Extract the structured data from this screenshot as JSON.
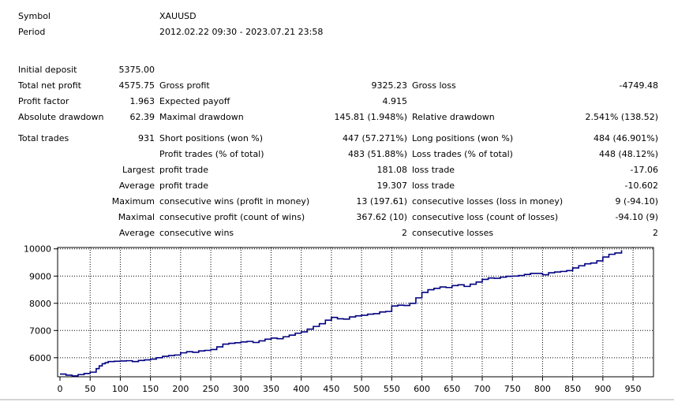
{
  "header": {
    "symbol_label": "Symbol",
    "symbol_value": "XAUUSD",
    "period_label": "Period",
    "period_value": "2012.02.22 09:30 - 2023.07.21 23:58"
  },
  "stats": {
    "initial_deposit": {
      "label": "Initial deposit",
      "value": "5375.00"
    },
    "total_net_profit": {
      "label": "Total net profit",
      "value": "4575.75"
    },
    "gross_profit": {
      "label": "Gross profit",
      "value": "9325.23"
    },
    "gross_loss": {
      "label": "Gross loss",
      "value": "-4749.48"
    },
    "profit_factor": {
      "label": "Profit factor",
      "value": "1.963"
    },
    "expected_payoff": {
      "label": "Expected payoff",
      "value": "4.915"
    },
    "absolute_drawdown": {
      "label": "Absolute drawdown",
      "value": "62.39"
    },
    "maximal_drawdown": {
      "label": "Maximal drawdown",
      "value": "145.81 (1.948%)"
    },
    "relative_drawdown": {
      "label": "Relative drawdown",
      "value": "2.541% (138.52)"
    },
    "total_trades": {
      "label": "Total trades",
      "value": "931"
    },
    "short_positions": {
      "label": "Short positions (won %)",
      "value": "447 (57.271%)"
    },
    "long_positions": {
      "label": "Long positions (won %)",
      "value": "484 (46.901%)"
    },
    "profit_trades": {
      "label": "Profit trades (% of total)",
      "value": "483 (51.88%)"
    },
    "loss_trades": {
      "label": "Loss trades (% of total)",
      "value": "448 (48.12%)"
    },
    "largest": {
      "prefix": "Largest",
      "profit_label": "profit trade",
      "profit_value": "181.08",
      "loss_label": "loss trade",
      "loss_value": "-17.06"
    },
    "average": {
      "prefix": "Average",
      "profit_label": "profit trade",
      "profit_value": "19.307",
      "loss_label": "loss trade",
      "loss_value": "-10.602"
    },
    "maximum": {
      "prefix": "Maximum",
      "wins_label": "consecutive wins (profit in money)",
      "wins_value": "13 (197.61)",
      "losses_label": "consecutive losses (loss in money)",
      "losses_value": "9 (-94.10)"
    },
    "maximal": {
      "prefix": "Maximal",
      "profit_label": "consecutive profit (count of wins)",
      "profit_value": "367.62 (10)",
      "loss_label": "consecutive loss (count of losses)",
      "loss_value": "-94.10 (9)"
    },
    "average_consecutive": {
      "prefix": "Average",
      "wins_label": "consecutive wins",
      "wins_value": "2",
      "losses_label": "consecutive losses",
      "losses_value": "2"
    }
  },
  "chart_data": {
    "type": "line",
    "x_ticks": [
      "0",
      "50",
      "100",
      "150",
      "200",
      "250",
      "300",
      "350",
      "400",
      "450",
      "500",
      "550",
      "600",
      "650",
      "700",
      "750",
      "800",
      "850",
      "900",
      "950"
    ],
    "y_ticks": [
      "6000",
      "7000",
      "8000",
      "9000",
      "10000"
    ],
    "xlim": [
      0,
      980
    ],
    "ylim": [
      5300,
      10050
    ],
    "grid": true,
    "line_color": "#000080",
    "series": [
      {
        "x": [
          0,
          10,
          20,
          30,
          40,
          50,
          60,
          65,
          70,
          75,
          80,
          90,
          100,
          110,
          120,
          130,
          140,
          150,
          160,
          170,
          180,
          190,
          200,
          210,
          220,
          230,
          240,
          250,
          260,
          270,
          280,
          290,
          300,
          310,
          320,
          330,
          340,
          350,
          360,
          370,
          380,
          390,
          400,
          410,
          420,
          430,
          440,
          450,
          460,
          470,
          480,
          490,
          500,
          510,
          520,
          530,
          540,
          550,
          560,
          570,
          580,
          590,
          600,
          610,
          620,
          630,
          640,
          650,
          660,
          670,
          680,
          690,
          700,
          710,
          720,
          730,
          740,
          750,
          760,
          770,
          780,
          790,
          800,
          810,
          820,
          830,
          840,
          850,
          860,
          870,
          880,
          890,
          900,
          910,
          920,
          931
        ],
        "y": [
          5400,
          5360,
          5330,
          5380,
          5420,
          5470,
          5600,
          5700,
          5780,
          5820,
          5860,
          5870,
          5880,
          5890,
          5860,
          5900,
          5920,
          5950,
          6000,
          6050,
          6080,
          6100,
          6180,
          6220,
          6200,
          6250,
          6270,
          6300,
          6400,
          6500,
          6530,
          6550,
          6580,
          6600,
          6560,
          6620,
          6680,
          6720,
          6700,
          6770,
          6830,
          6900,
          6950,
          7050,
          7150,
          7250,
          7380,
          7480,
          7430,
          7420,
          7500,
          7540,
          7560,
          7600,
          7620,
          7680,
          7700,
          7900,
          7930,
          7920,
          8000,
          8200,
          8400,
          8500,
          8550,
          8600,
          8580,
          8650,
          8680,
          8620,
          8700,
          8780,
          8880,
          8930,
          8920,
          8960,
          8990,
          9000,
          9020,
          9060,
          9100,
          9100,
          9050,
          9120,
          9150,
          9170,
          9200,
          9300,
          9380,
          9450,
          9480,
          9560,
          9700,
          9800,
          9850,
          9950
        ]
      }
    ]
  }
}
